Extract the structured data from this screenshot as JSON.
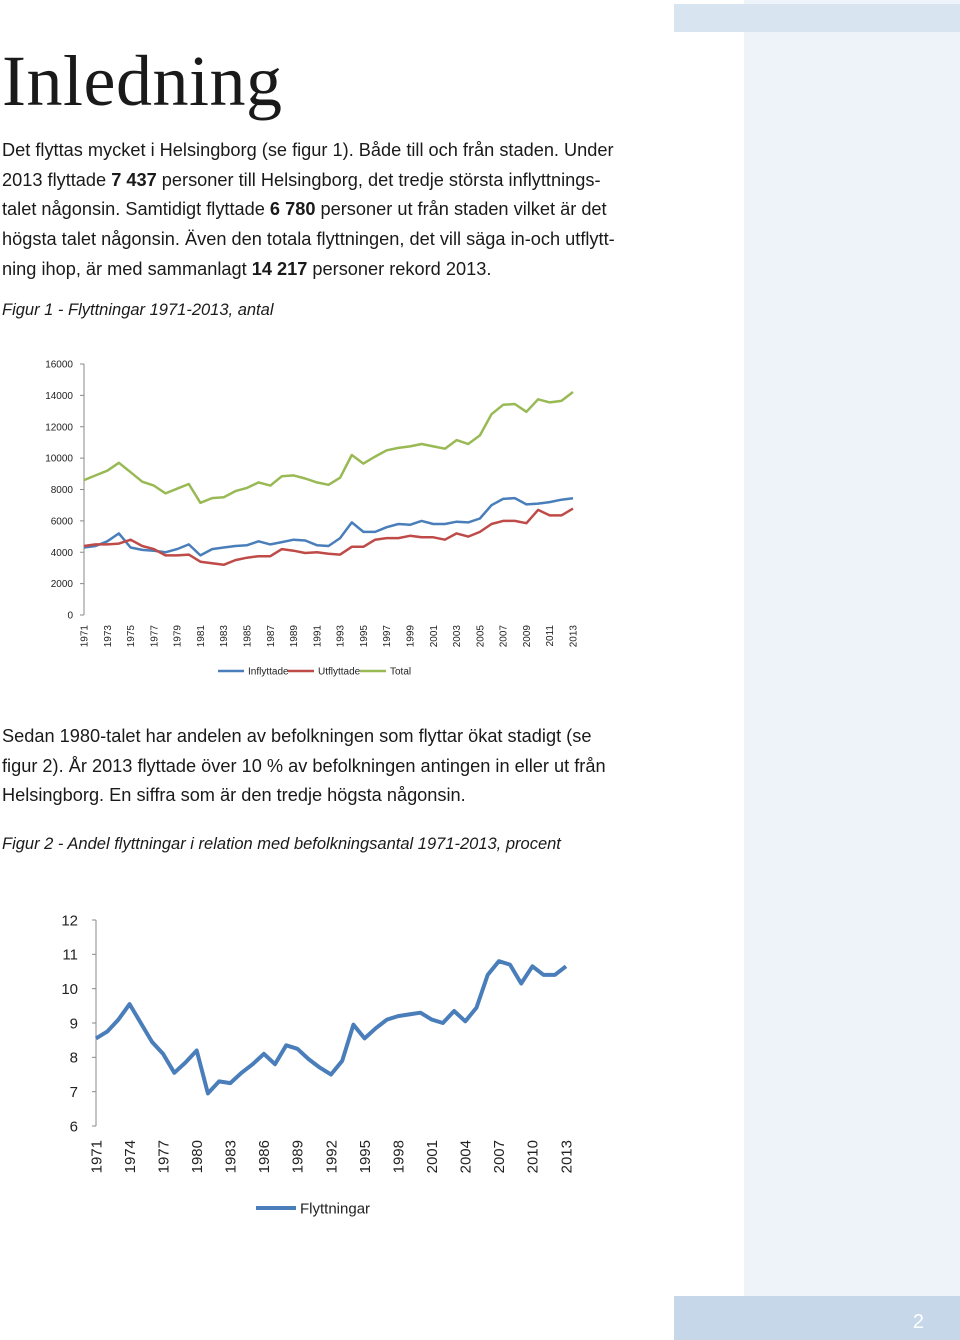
{
  "title": "Inledning",
  "intro": {
    "line1": "Det flyttas mycket i Helsingborg (se figur 1). Både till och från staden. Under",
    "line2_a": "2013 flyttade ",
    "line2_b": "7 437",
    "line2_c": " personer till Helsingborg, det tredje största inflyttnings-",
    "line3": "talet någonsin. Samtidigt flyttade ",
    "line3_b": "6 780",
    "line3_c": " personer ut från staden vilket är det",
    "line4": "högsta talet någonsin. Även den totala flyttningen, det vill säga in-och utflytt-",
    "line5_a": "ning ihop, är med sammanlagt ",
    "line5_b": "14 217",
    "line5_c": " personer rekord 2013."
  },
  "figure1_caption": "Figur 1 - Flyttningar 1971-2013, antal",
  "paragraph2": {
    "line1": "Sedan 1980-talet har andelen av befolkningen som flyttar ökat stadigt (se",
    "line2": "figur 2). År 2013 flyttade över 10 % av befolkningen antingen in eller ut från",
    "line3": "Helsingborg. En siffra som är den tredje högsta någonsin."
  },
  "figure2_caption": "Figur 2 - Andel flyttningar i relation med befolkningsantal 1971-2013, procent",
  "page_number": "2",
  "chart_data": [
    {
      "type": "line",
      "title": "Figur 1 - Flyttningar 1971-2013, antal",
      "x": [
        1971,
        1972,
        1973,
        1974,
        1975,
        1976,
        1977,
        1978,
        1979,
        1980,
        1981,
        1982,
        1983,
        1984,
        1985,
        1986,
        1987,
        1988,
        1989,
        1990,
        1991,
        1992,
        1993,
        1994,
        1995,
        1996,
        1997,
        1998,
        1999,
        2000,
        2001,
        2002,
        2003,
        2004,
        2005,
        2006,
        2007,
        2008,
        2009,
        2010,
        2011,
        2012,
        2013
      ],
      "xticks": [
        "1971",
        "1973",
        "1975",
        "1977",
        "1979",
        "1981",
        "1983",
        "1985",
        "1987",
        "1989",
        "1991",
        "1993",
        "1995",
        "1997",
        "1999",
        "2001",
        "2003",
        "2005",
        "2007",
        "2009",
        "2011",
        "2013"
      ],
      "ylim": [
        0,
        16000
      ],
      "yticks": [
        "0",
        "2000",
        "4000",
        "6000",
        "8000",
        "10000",
        "12000",
        "14000",
        "16000"
      ],
      "legend_position": "bottom",
      "colors": [
        "#4a7ebb",
        "#be4b48",
        "#98b954"
      ],
      "series": [
        {
          "name": "Inflyttade",
          "values": [
            4300,
            4400,
            4700,
            5200,
            4300,
            4150,
            4100,
            4000,
            4200,
            4500,
            3800,
            4200,
            4300,
            4400,
            4450,
            4700,
            4500,
            4650,
            4800,
            4750,
            4450,
            4400,
            4900,
            5900,
            5300,
            5300,
            5600,
            5800,
            5750,
            6000,
            5800,
            5800,
            5950,
            5900,
            6150,
            7000,
            7400,
            7450,
            7050,
            7100,
            7200,
            7350,
            7437
          ]
        },
        {
          "name": "Utflyttade",
          "values": [
            4400,
            4500,
            4500,
            4550,
            4800,
            4400,
            4200,
            3800,
            3800,
            3850,
            3400,
            3300,
            3200,
            3500,
            3650,
            3750,
            3750,
            4200,
            4100,
            3950,
            4000,
            3900,
            3850,
            4350,
            4350,
            4800,
            4900,
            4900,
            5050,
            4950,
            4950,
            4800,
            5200,
            5000,
            5300,
            5800,
            6000,
            6000,
            5850,
            6700,
            6350,
            6350,
            6780
          ]
        },
        {
          "name": "Total",
          "values": [
            8600,
            8900,
            9200,
            9700,
            9100,
            8500,
            8250,
            7750,
            8050,
            8350,
            7150,
            7450,
            7500,
            7900,
            8100,
            8450,
            8250,
            8850,
            8900,
            8700,
            8450,
            8300,
            8750,
            10200,
            9650,
            10100,
            10500,
            10650,
            10750,
            10900,
            10750,
            10600,
            11150,
            10900,
            11450,
            12800,
            13400,
            13450,
            12950,
            13750,
            13550,
            13650,
            14217
          ]
        }
      ]
    },
    {
      "type": "line",
      "title": "Figur 2 - Andel flyttningar i relation med befolkningsantal 1971-2013, procent",
      "x": [
        1971,
        1972,
        1973,
        1974,
        1975,
        1976,
        1977,
        1978,
        1979,
        1980,
        1981,
        1982,
        1983,
        1984,
        1985,
        1986,
        1987,
        1988,
        1989,
        1990,
        1991,
        1992,
        1993,
        1994,
        1995,
        1996,
        1997,
        1998,
        1999,
        2000,
        2001,
        2002,
        2003,
        2004,
        2005,
        2006,
        2007,
        2008,
        2009,
        2010,
        2011,
        2012,
        2013
      ],
      "xticks": [
        "1971",
        "1974",
        "1977",
        "1980",
        "1983",
        "1986",
        "1989",
        "1992",
        "1995",
        "1998",
        "2001",
        "2004",
        "2007",
        "2010",
        "2013"
      ],
      "ylim": [
        6,
        12
      ],
      "yticks": [
        "6",
        "7",
        "8",
        "9",
        "10",
        "11",
        "12"
      ],
      "legend_position": "bottom",
      "colors": [
        "#4a7ebb"
      ],
      "series": [
        {
          "name": "Flyttningar",
          "values": [
            8.55,
            8.75,
            9.1,
            9.55,
            9.0,
            8.45,
            8.1,
            7.55,
            7.85,
            8.2,
            6.95,
            7.3,
            7.25,
            7.55,
            7.8,
            8.1,
            7.8,
            8.35,
            8.25,
            7.95,
            7.7,
            7.5,
            7.9,
            8.95,
            8.55,
            8.85,
            9.1,
            9.2,
            9.25,
            9.3,
            9.1,
            9.0,
            9.35,
            9.05,
            9.45,
            10.4,
            10.8,
            10.7,
            10.15,
            10.65,
            10.4,
            10.4,
            10.65
          ]
        }
      ]
    }
  ]
}
